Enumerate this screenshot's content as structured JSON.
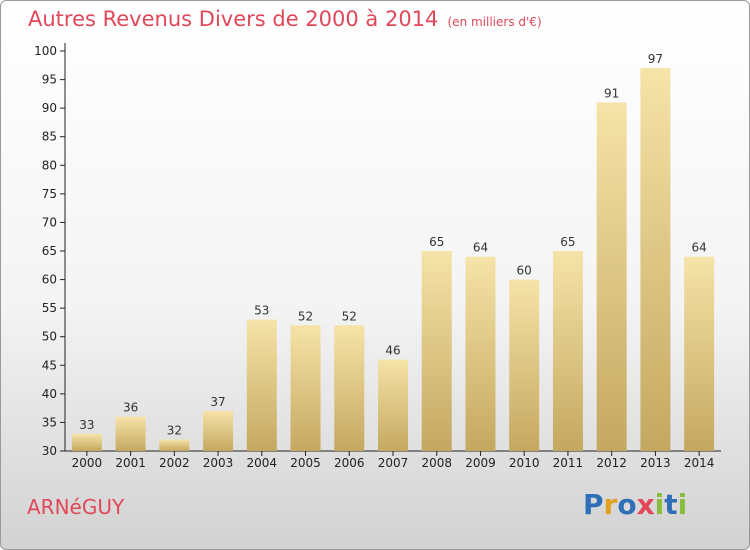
{
  "chart_data": {
    "type": "bar",
    "title": "Autres Revenus Divers de 2000 à 2014",
    "subtitle": "(en milliers d'€)",
    "categories": [
      "2000",
      "2001",
      "2002",
      "2003",
      "2004",
      "2005",
      "2006",
      "2007",
      "2008",
      "2009",
      "2010",
      "2011",
      "2012",
      "2013",
      "2014"
    ],
    "values": [
      33,
      36,
      32,
      37,
      53,
      52,
      52,
      46,
      65,
      64,
      60,
      65,
      91,
      97,
      64
    ],
    "ylim": [
      30,
      100
    ],
    "yticks": [
      30,
      35,
      40,
      45,
      50,
      55,
      60,
      65,
      70,
      75,
      80,
      85,
      90,
      95,
      100
    ],
    "xlabel": "",
    "ylabel": "",
    "grid": false,
    "bar_color_light": "#f6e3a8",
    "bar_color_dark": "#c4a860"
  },
  "footer": {
    "town": "ARNéGUY",
    "logo_letters": [
      "P",
      "r",
      "o",
      "x",
      "i",
      "t",
      "i"
    ],
    "logo_colors": [
      "#2f6fb8",
      "#e0a020",
      "#2f6fb8",
      "#e0485a",
      "#8bbd3c",
      "#2f6fb8",
      "#8bbd3c"
    ]
  }
}
